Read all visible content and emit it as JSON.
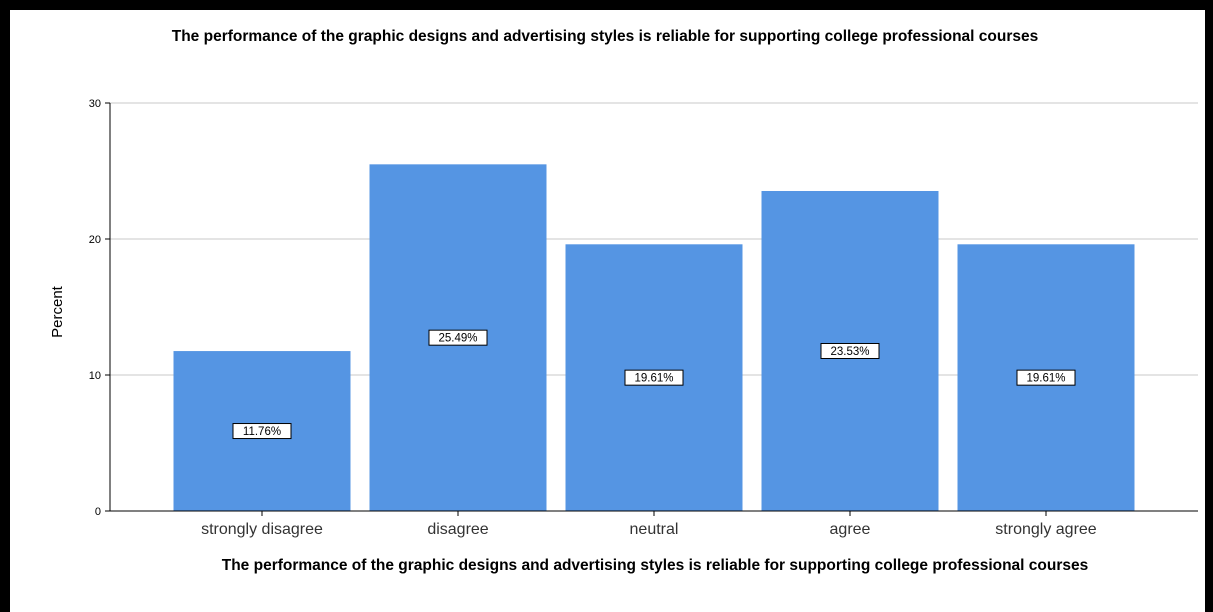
{
  "chart_data": {
    "type": "bar",
    "title": "The performance of the graphic designs and advertising styles is reliable for supporting college professional courses",
    "xlabel": "The performance of the graphic designs and advertising styles is reliable for supporting college professional courses",
    "ylabel": "Percent",
    "categories": [
      "strongly disagree",
      "disagree",
      "neutral",
      "agree",
      "strongly agree"
    ],
    "values": [
      11.76,
      25.49,
      19.61,
      23.53,
      19.61
    ],
    "data_labels": [
      "11.76%",
      "25.49%",
      "19.61%",
      "23.53%",
      "19.61%"
    ],
    "ylim": [
      0,
      30
    ],
    "yticks": [
      "0",
      "10",
      "20",
      "30"
    ],
    "grid": true,
    "bar_color": "#5595e3"
  }
}
